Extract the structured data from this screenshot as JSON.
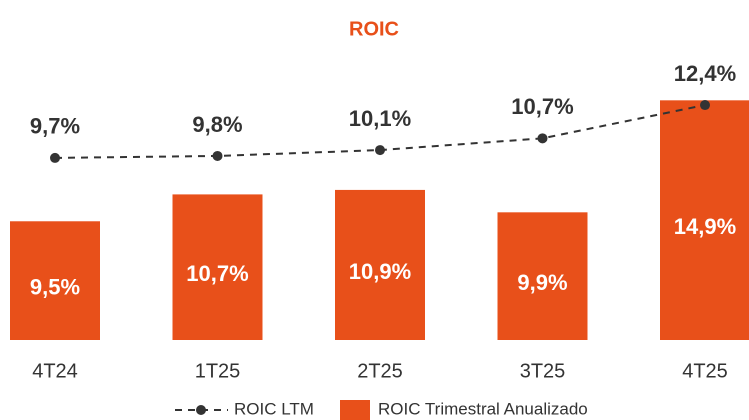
{
  "chart_data": {
    "type": "bar_line",
    "title": "ROIC",
    "categories": [
      "4T24",
      "1T25",
      "2T25",
      "3T25",
      "4T25"
    ],
    "ylim": [
      4.2,
      16.7
    ],
    "y2lim": [
      0.4,
      14.7
    ],
    "series": [
      {
        "name": "ROIC Trimestral Anualizado",
        "type": "bar",
        "color": "#e8501a",
        "values": [
          9.5,
          10.7,
          10.9,
          9.9,
          14.9
        ],
        "value_labels": [
          "9,5%",
          "10,7%",
          "10,9%",
          "9,9%",
          "14,9%"
        ]
      },
      {
        "name": "ROIC LTM",
        "type": "line",
        "axis": "y2",
        "color": "#333333",
        "values": [
          9.7,
          9.8,
          10.1,
          10.7,
          12.4
        ],
        "value_labels": [
          "9,7%",
          "9,8%",
          "10,1%",
          "10,7%",
          "12,4%"
        ]
      }
    ]
  }
}
